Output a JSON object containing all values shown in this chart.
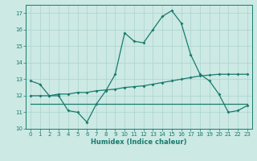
{
  "title": "",
  "xlabel": "Humidex (Indice chaleur)",
  "ylabel": "",
  "xlim": [
    -0.5,
    23.5
  ],
  "ylim": [
    10,
    17.5
  ],
  "yticks": [
    10,
    11,
    12,
    13,
    14,
    15,
    16,
    17
  ],
  "xticks": [
    0,
    1,
    2,
    3,
    4,
    5,
    6,
    7,
    8,
    9,
    10,
    11,
    12,
    13,
    14,
    15,
    16,
    17,
    18,
    19,
    20,
    21,
    22,
    23
  ],
  "bg_color": "#cce9e4",
  "line_color": "#1a7a6e",
  "grid_color": "#aad4cc",
  "line1_x": [
    0,
    1,
    2,
    3,
    4,
    5,
    6,
    7,
    8,
    9,
    10,
    11,
    12,
    13,
    14,
    15,
    16,
    17,
    18,
    19,
    20,
    21,
    22,
    23
  ],
  "line1_y": [
    12.9,
    12.7,
    12.0,
    12.0,
    11.1,
    11.0,
    10.4,
    11.5,
    12.3,
    13.3,
    15.8,
    15.3,
    15.2,
    16.0,
    16.8,
    17.15,
    16.4,
    14.5,
    13.3,
    12.9,
    12.1,
    11.0,
    11.1,
    11.4
  ],
  "line2_x": [
    0,
    1,
    2,
    3,
    4,
    5,
    6,
    7,
    8,
    9,
    10,
    11,
    12,
    13,
    14,
    15,
    16,
    17,
    18,
    19,
    20,
    21,
    22,
    23
  ],
  "line2_y": [
    12.0,
    12.0,
    12.0,
    12.1,
    12.1,
    12.2,
    12.2,
    12.3,
    12.35,
    12.4,
    12.5,
    12.55,
    12.6,
    12.7,
    12.8,
    12.9,
    13.0,
    13.1,
    13.2,
    13.25,
    13.3,
    13.3,
    13.3,
    13.3
  ],
  "line3_x": [
    0,
    2,
    23
  ],
  "line3_y": [
    11.5,
    11.5,
    11.5
  ]
}
